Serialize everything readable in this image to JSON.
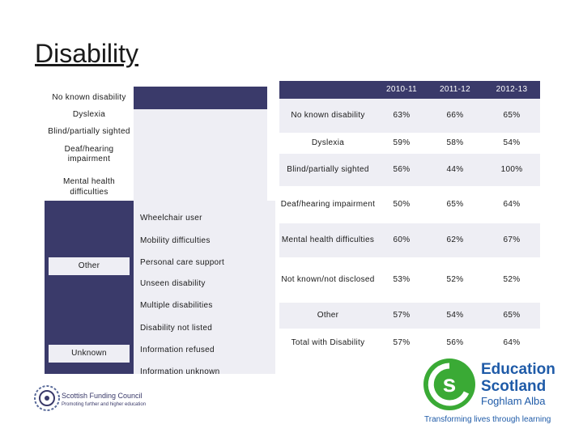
{
  "title": "Disability",
  "left": {
    "no_known": "No known disability",
    "dyslexia": "Dyslexia",
    "blind": "Blind/partially sighted",
    "deaf": "Deaf/hearing impairment",
    "mental": "Mental health difficulties",
    "other": "Other",
    "unknown": "Unknown",
    "other_items": [
      "Wheelchair user",
      "Mobility difficulties",
      "Personal care support",
      "Unseen disability",
      "Multiple disabilities",
      "Disability not listed"
    ],
    "unknown_items": [
      "Information refused",
      "Information unknown"
    ]
  },
  "table": {
    "headers": [
      "2010-11",
      "2011-12",
      "2012-13"
    ],
    "rows": [
      {
        "label": "No known disability",
        "values": [
          "63%",
          "66%",
          "65%"
        ]
      },
      {
        "label": "Dyslexia",
        "values": [
          "59%",
          "58%",
          "54%"
        ]
      },
      {
        "label": "Blind/partially sighted",
        "values": [
          "56%",
          "44%",
          "100%"
        ]
      },
      {
        "label": "Deaf/hearing impairment",
        "values": [
          "50%",
          "65%",
          "64%"
        ]
      },
      {
        "label": "Mental health difficulties",
        "values": [
          "60%",
          "62%",
          "67%"
        ]
      },
      {
        "label": "Not known/not disclosed",
        "values": [
          "53%",
          "52%",
          "52%"
        ]
      },
      {
        "label": "Other",
        "values": [
          "57%",
          "54%",
          "65%"
        ]
      },
      {
        "label": "Total with Disability",
        "values": [
          "57%",
          "56%",
          "64%"
        ]
      }
    ]
  },
  "logos": {
    "sfc_name": "Scottish Funding Council",
    "sfc_tagline": "Promoting further and higher education",
    "es_line1": "Education",
    "es_line2": "Scotland",
    "es_line3": "Foghlam Alba",
    "es_tagline": "Transforming lives through learning"
  },
  "colors": {
    "navy": "#3a3a6a",
    "light_row": "#eeeef4",
    "es_green": "#3aaa35",
    "es_blue": "#1f5ba8"
  }
}
